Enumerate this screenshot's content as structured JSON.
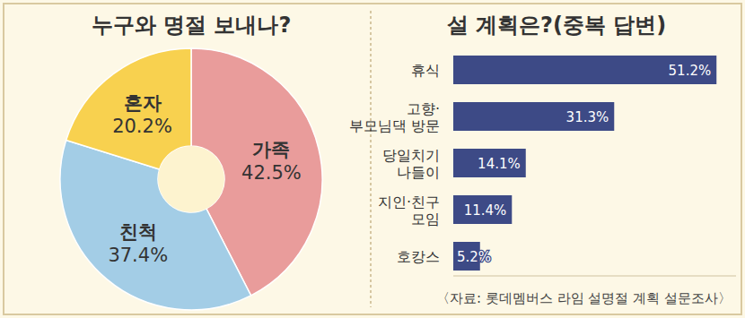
{
  "chart_data": [
    {
      "type": "pie",
      "title": "누구와 명절 보내나?",
      "categories": [
        "가족",
        "친척",
        "혼자"
      ],
      "values": [
        42.5,
        37.4,
        20.2
      ],
      "value_labels": [
        "42.5%",
        "37.4%",
        "20.2%"
      ],
      "colors": [
        "#e99c9b",
        "#a3cde6",
        "#f8d14f"
      ],
      "data_labels": true
    },
    {
      "type": "bar",
      "title": "설 계획은?(중복 답변)",
      "orientation": "horizontal",
      "categories": [
        "휴식",
        "고향·\n부모님댁 방문",
        "당일치기\n나들이",
        "지인·친구\n모임",
        "호캉스"
      ],
      "values": [
        51.2,
        31.3,
        14.1,
        11.4,
        5.2
      ],
      "value_labels": [
        "51.2%",
        "31.3%",
        "14.1%",
        "11.4%",
        "5.2%"
      ],
      "color": "#3d4a86",
      "ylim": [
        0,
        55
      ],
      "tick_labels": false,
      "data_labels": true,
      "source": "〈자료: 롯데멤버스 라임 설명절 계획 설문조사〉"
    }
  ]
}
